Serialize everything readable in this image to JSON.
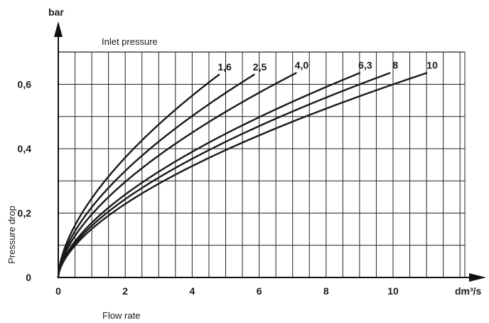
{
  "chart_data": {
    "type": "line",
    "title": "",
    "legend_title": "Inlet pressure",
    "xlabel": "Flow rate",
    "ylabel": "Pressure drop",
    "x_unit": "dm³/s",
    "y_unit": "bar",
    "xlim": [
      0,
      12
    ],
    "ylim": [
      0,
      0.7
    ],
    "x_ticks": [
      0,
      2,
      4,
      6,
      8,
      10
    ],
    "x_tick_labels": [
      "0",
      "2",
      "4",
      "6",
      "8",
      "10"
    ],
    "y_ticks": [
      0,
      0.2,
      0.4,
      0.6
    ],
    "y_tick_labels": [
      "0",
      "0,2",
      "0,4",
      "0,6"
    ],
    "grid": true,
    "series": [
      {
        "name": "1,6",
        "end_x": 4.8,
        "end_y": 0.63
      },
      {
        "name": "2,5",
        "end_x": 5.85,
        "end_y": 0.63
      },
      {
        "name": "4,0",
        "end_x": 7.1,
        "end_y": 0.635
      },
      {
        "name": "6,3",
        "end_x": 9.0,
        "end_y": 0.635
      },
      {
        "name": "8",
        "end_x": 9.9,
        "end_y": 0.635
      },
      {
        "name": "10",
        "end_x": 11.0,
        "end_y": 0.635
      }
    ]
  }
}
